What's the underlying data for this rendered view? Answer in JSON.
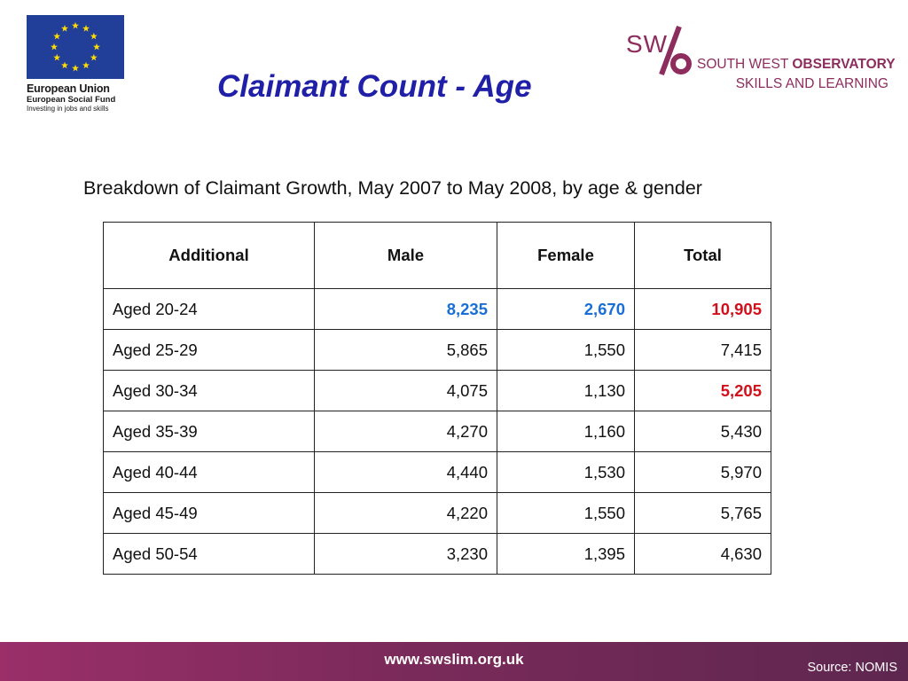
{
  "eu_logo": {
    "line1": "European Union",
    "line2": "European Social Fund",
    "line3": "Investing in jobs and skills",
    "flag_color": "#213f99",
    "star_color": "#ffdd00"
  },
  "title": "Claimant Count - Age",
  "swo_logo": {
    "mark": "SW",
    "name_line1_regular": "SOUTH WEST ",
    "name_line1_bold": "OBSERVATORY",
    "name_line2": "SKILLS AND LEARNING",
    "brand_color": "#8c2d5e",
    "accent_color": "#f08a1c"
  },
  "subtitle": "Breakdown of Claimant Growth, May 2007 to May 2008, by age & gender",
  "table": {
    "headers": [
      "Additional",
      "Male",
      "Female",
      "Total"
    ],
    "rows": [
      {
        "age": "Aged 20-24",
        "male": "8,235",
        "female": "2,670",
        "total": "10,905"
      },
      {
        "age": "Aged 25-29",
        "male": "5,865",
        "female": "1,550",
        "total": "7,415"
      },
      {
        "age": "Aged 30-34",
        "male": "4,075",
        "female": "1,130",
        "total": "5,205"
      },
      {
        "age": "Aged 35-39",
        "male": "4,270",
        "female": "1,160",
        "total": "5,430"
      },
      {
        "age": "Aged 40-44",
        "male": "4,440",
        "female": "1,530",
        "total": "5,970"
      },
      {
        "age": "Aged 45-49",
        "male": "4,220",
        "female": "1,550",
        "total": "5,765"
      },
      {
        "age": "Aged 50-54",
        "male": "3,230",
        "female": "1,395",
        "total": "4,630"
      }
    ],
    "highlight_blue": "#1a6fd6",
    "highlight_red": "#d0101a"
  },
  "footer": {
    "url": "www.swslim.org.uk",
    "source": "Source: NOMIS",
    "color": "#7a2a5a"
  }
}
